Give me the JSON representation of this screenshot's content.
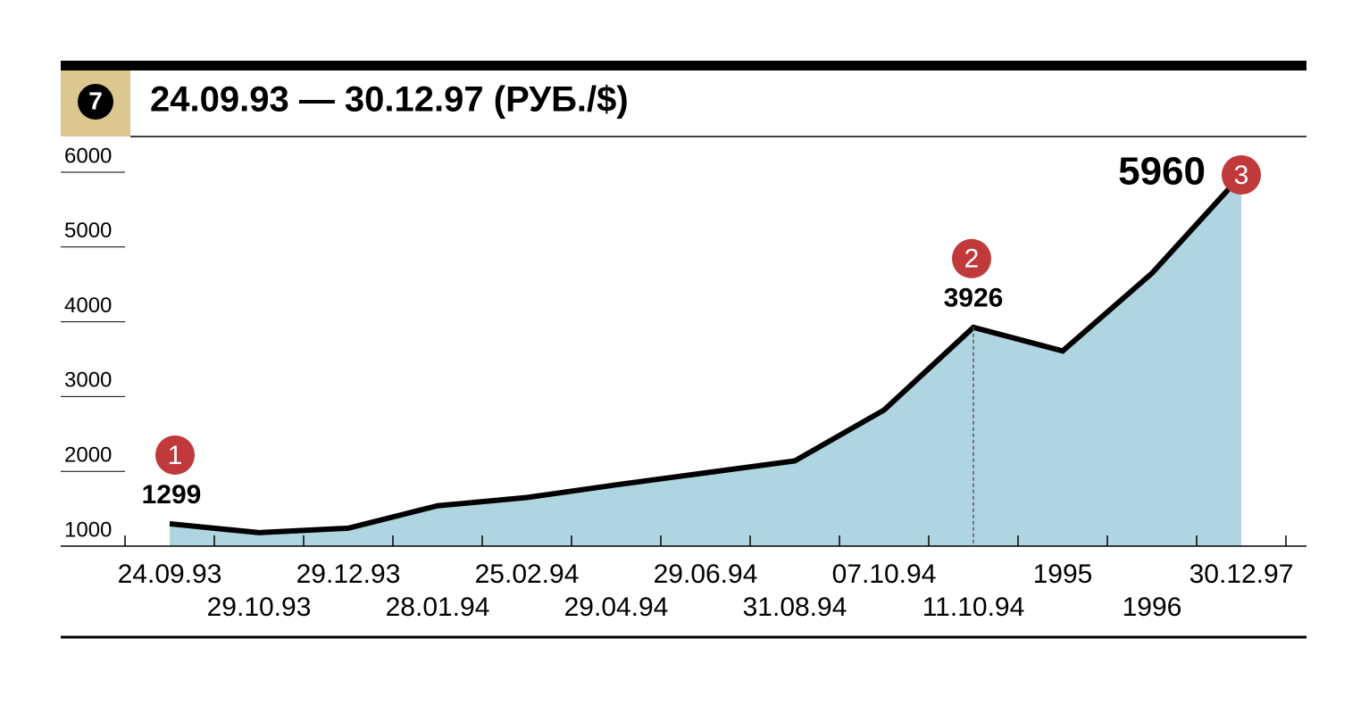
{
  "chart_data": {
    "type": "area",
    "badge": "7",
    "title": "24.09.93 — 30.12.97 (РУБ./$)",
    "categories": [
      "24.09.93",
      "29.10.93",
      "29.12.93",
      "28.01.94",
      "25.02.94",
      "29.04.94",
      "29.06.94",
      "31.08.94",
      "07.10.94",
      "11.10.94",
      "1995",
      "1996",
      "30.12.97"
    ],
    "values": [
      1299,
      1180,
      1240,
      1540,
      1650,
      1820,
      1980,
      2140,
      2820,
      3926,
      3610,
      4650,
      5960
    ],
    "color": "#afd5e1",
    "line_color": "#000000",
    "ylim": [
      1000,
      6000
    ],
    "yticks": [
      1000,
      2000,
      3000,
      4000,
      5000,
      6000
    ],
    "grid": true,
    "markers": [
      {
        "index": 0,
        "label": "1"
      },
      {
        "index": 9,
        "label": "2"
      },
      {
        "index": 12,
        "label": "3"
      }
    ],
    "marker_color": "#c0393b"
  }
}
